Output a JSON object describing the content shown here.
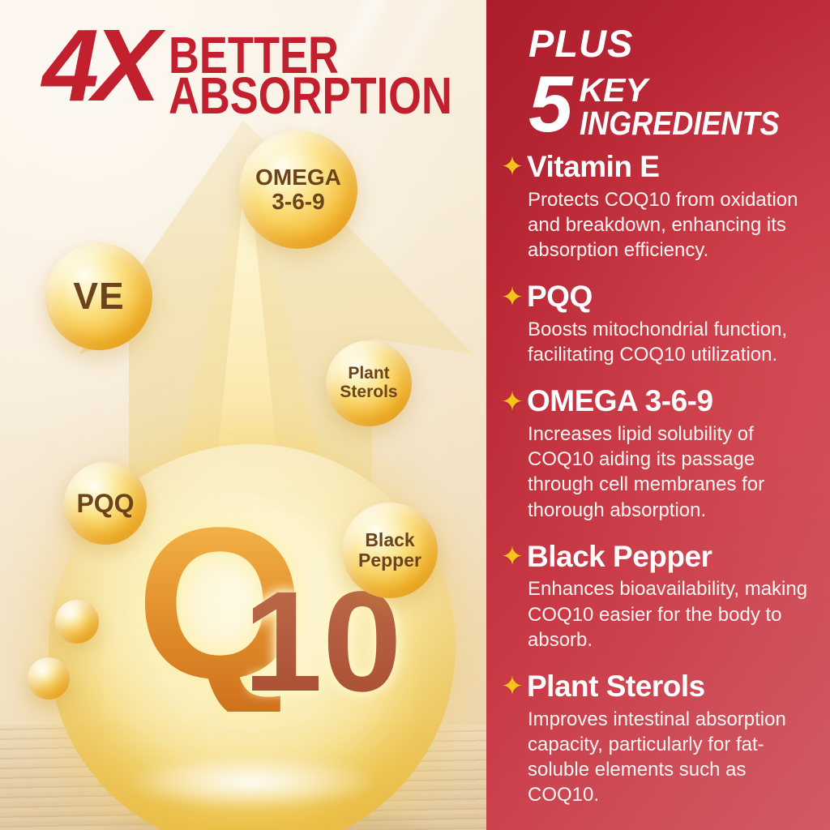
{
  "headline": {
    "multiplier": "4X",
    "line1": "BETTER",
    "line2": "ABSORPTION"
  },
  "drop": {
    "q": "Q",
    "ten": "10"
  },
  "bubbles": {
    "omega": {
      "line1": "OMEGA",
      "line2": "3-6-9"
    },
    "ve": {
      "line1": "VE"
    },
    "plant_sterols": {
      "line1": "Plant",
      "line2": "Sterols"
    },
    "pqq": {
      "line1": "PQQ"
    },
    "black_pepper": {
      "line1": "Black",
      "line2": "Pepper"
    }
  },
  "panel": {
    "plus": "PLUS",
    "count": "5",
    "key_line1": "KEY",
    "key_line2": "INGREDIENTS",
    "star_icon": "✦",
    "sections": [
      {
        "title": "Vitamin E",
        "description": "Protects COQ10 from oxidation and breakdown, enhancing its absorption efficiency."
      },
      {
        "title": "PQQ",
        "description": "Boosts mitochondrial function, facilitating COQ10 utilization."
      },
      {
        "title": "OMEGA 3-6-9",
        "description": "Increases lipid solubility of COQ10 aiding its passage through cell membranes for thorough absorption."
      },
      {
        "title": "Black Pepper",
        "description": "Enhances bioavailability, making COQ10 easier for the body to absorb."
      },
      {
        "title": "Plant Sterols",
        "description": "Improves intestinal absorption capacity, particularly for fat-soluble elements such as COQ10."
      }
    ]
  },
  "colors": {
    "headline_red": "#c2202e",
    "panel_red_dark": "#ab1d2b",
    "panel_red_light": "#d15b66",
    "gold": "#f2c234",
    "bubble_text_brown": "#6d431b",
    "star_gold": "#f6c31c",
    "q10_orange": "#e2902c",
    "q10_brown_red": "#a84c33",
    "text_white": "#ffffff"
  }
}
